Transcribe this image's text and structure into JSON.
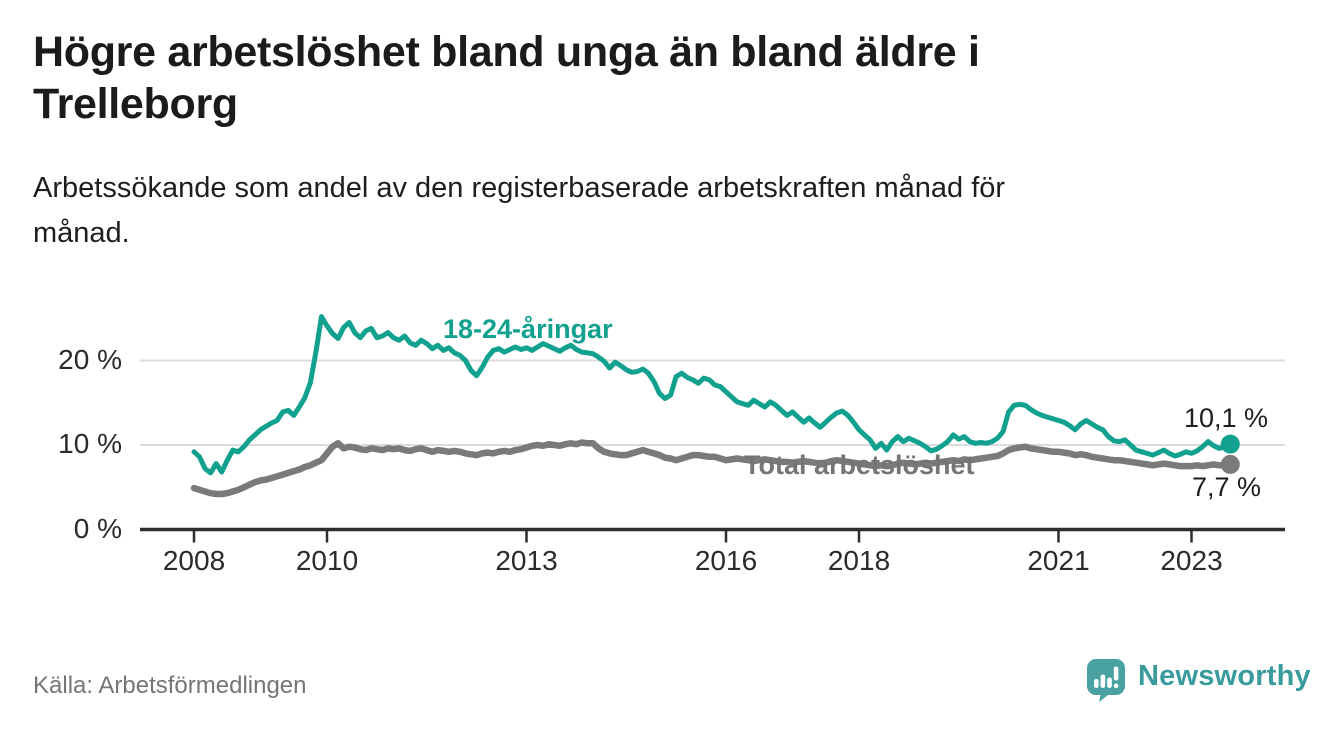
{
  "header": {
    "title_lines": [
      "Högre arbetslöshet bland unga än bland äldre i",
      "Trelleborg"
    ],
    "subtitle_lines": [
      "Arbetssökande som andel av den registerbaserade arbetskraften månad för",
      "månad."
    ]
  },
  "chart_data": {
    "type": "line",
    "title": "Högre arbetslöshet bland unga än bland äldre i Trelleborg",
    "subtitle": "Arbetssökande som andel av den registerbaserade arbetskraften månad för månad.",
    "unit": "%",
    "grid": "horizontal",
    "legend_position": "inline-labels",
    "ylim": [
      0,
      27
    ],
    "start_year": 2008,
    "points_per_month": 1,
    "y_ticks": [
      {
        "value": 20,
        "label": "20 %"
      },
      {
        "value": 10,
        "label": "10 %"
      },
      {
        "value": 0,
        "label": "0 %"
      }
    ],
    "x_ticks": [
      {
        "label": "2008",
        "month_index": 0
      },
      {
        "label": "2010",
        "month_index": 24
      },
      {
        "label": "2013",
        "month_index": 60
      },
      {
        "label": "2016",
        "month_index": 96
      },
      {
        "label": "2018",
        "month_index": 120
      },
      {
        "label": "2021",
        "month_index": 156
      },
      {
        "label": "2023",
        "month_index": 180
      }
    ],
    "series": [
      {
        "name": "18-24-åringar",
        "color": "#12a18e",
        "end_label": "10,1 %",
        "end_value": 10.1,
        "values": [
          9.2,
          8.6,
          7.2,
          6.7,
          7.8,
          6.8,
          8.2,
          9.4,
          9.2,
          9.8,
          10.6,
          11.2,
          11.8,
          12.2,
          12.6,
          12.9,
          13.9,
          14.1,
          13.5,
          14.5,
          15.6,
          17.4,
          21.0,
          25.2,
          24.1,
          23.2,
          22.6,
          23.9,
          24.5,
          23.3,
          22.7,
          23.5,
          23.8,
          22.7,
          22.9,
          23.3,
          22.7,
          22.4,
          22.9,
          22.1,
          21.8,
          22.4,
          22.0,
          21.4,
          21.8,
          21.2,
          21.5,
          20.9,
          20.6,
          20.0,
          18.8,
          18.2,
          19.2,
          20.4,
          21.2,
          21.4,
          21.0,
          21.3,
          21.6,
          21.3,
          21.5,
          21.2,
          21.6,
          22.0,
          21.7,
          21.4,
          21.1,
          21.5,
          21.8,
          21.3,
          21.0,
          20.9,
          20.8,
          20.4,
          19.9,
          19.1,
          19.8,
          19.4,
          18.9,
          18.6,
          18.7,
          19.0,
          18.5,
          17.5,
          16.1,
          15.5,
          15.9,
          18.1,
          18.5,
          18.0,
          17.7,
          17.3,
          17.9,
          17.7,
          17.1,
          16.9,
          16.3,
          15.7,
          15.1,
          14.9,
          14.7,
          15.3,
          14.9,
          14.5,
          15.1,
          14.7,
          14.1,
          13.5,
          13.9,
          13.3,
          12.7,
          13.2,
          12.6,
          12.1,
          12.7,
          13.3,
          13.8,
          14.0,
          13.5,
          12.7,
          11.8,
          11.2,
          10.6,
          9.6,
          10.2,
          9.4,
          10.4,
          11.0,
          10.4,
          10.8,
          10.5,
          10.2,
          9.8,
          9.3,
          9.5,
          9.9,
          10.4,
          11.2,
          10.7,
          11.0,
          10.4,
          10.2,
          10.3,
          10.2,
          10.4,
          10.8,
          11.6,
          13.9,
          14.7,
          14.8,
          14.7,
          14.2,
          13.8,
          13.5,
          13.3,
          13.1,
          12.9,
          12.7,
          12.3,
          11.8,
          12.5,
          12.9,
          12.5,
          12.1,
          11.8,
          11.0,
          10.5,
          10.4,
          10.6,
          10.0,
          9.4,
          9.2,
          9.0,
          8.8,
          9.1,
          9.4,
          9.0,
          8.7,
          8.9,
          9.2,
          9.0,
          9.3,
          9.8,
          10.4,
          9.9,
          9.6,
          9.8,
          10.1
        ]
      },
      {
        "name": "Total arbetslöshet",
        "color": "#7a7a7a",
        "end_label": "7,7 %",
        "end_value": 7.7,
        "values": [
          4.9,
          4.7,
          4.5,
          4.3,
          4.2,
          4.2,
          4.3,
          4.5,
          4.7,
          5.0,
          5.3,
          5.6,
          5.8,
          5.9,
          6.1,
          6.3,
          6.5,
          6.7,
          6.9,
          7.1,
          7.4,
          7.6,
          7.9,
          8.2,
          9.0,
          9.8,
          10.2,
          9.6,
          9.8,
          9.7,
          9.5,
          9.4,
          9.6,
          9.5,
          9.4,
          9.6,
          9.5,
          9.6,
          9.4,
          9.3,
          9.5,
          9.6,
          9.4,
          9.2,
          9.4,
          9.3,
          9.2,
          9.3,
          9.2,
          9.0,
          8.9,
          8.8,
          9.0,
          9.1,
          9.0,
          9.2,
          9.3,
          9.2,
          9.4,
          9.5,
          9.7,
          9.9,
          10.0,
          9.9,
          10.1,
          10.0,
          9.9,
          10.1,
          10.2,
          10.1,
          10.3,
          10.2,
          10.2,
          9.6,
          9.2,
          9.0,
          8.9,
          8.8,
          8.8,
          9.0,
          9.2,
          9.4,
          9.2,
          9.0,
          8.8,
          8.5,
          8.4,
          8.2,
          8.4,
          8.6,
          8.8,
          8.8,
          8.7,
          8.6,
          8.6,
          8.4,
          8.2,
          8.3,
          8.4,
          8.3,
          8.2,
          8.1,
          8.2,
          8.3,
          8.2,
          8.1,
          8.0,
          8.0,
          7.9,
          8.0,
          8.1,
          8.0,
          7.9,
          7.8,
          7.9,
          8.1,
          8.2,
          8.1,
          8.0,
          7.9,
          7.8,
          7.7,
          7.6,
          7.5,
          7.6,
          7.5,
          7.6,
          7.8,
          7.9,
          7.8,
          7.7,
          7.8,
          7.9,
          7.8,
          7.9,
          8.0,
          8.1,
          8.2,
          8.1,
          8.3,
          8.2,
          8.3,
          8.4,
          8.5,
          8.6,
          8.7,
          9.0,
          9.4,
          9.6,
          9.7,
          9.8,
          9.6,
          9.5,
          9.4,
          9.3,
          9.2,
          9.2,
          9.1,
          9.0,
          8.8,
          8.9,
          8.8,
          8.6,
          8.5,
          8.4,
          8.3,
          8.2,
          8.2,
          8.1,
          8.0,
          7.9,
          7.8,
          7.7,
          7.6,
          7.7,
          7.8,
          7.7,
          7.6,
          7.5,
          7.5,
          7.5,
          7.6,
          7.5,
          7.6,
          7.7,
          7.6,
          7.6,
          7.7
        ]
      }
    ]
  },
  "footer": {
    "source": "Källa: Arbetsförmedlingen",
    "brand": "Newsworthy"
  },
  "colors": {
    "youth_line": "#12a18e",
    "total_line": "#7a7a7a",
    "grid": "#dbdbdb",
    "axis": "#2e2e2e",
    "text": "#1b1b1b",
    "muted_text": "#757575",
    "brand_teal": "#4aa1a2"
  }
}
